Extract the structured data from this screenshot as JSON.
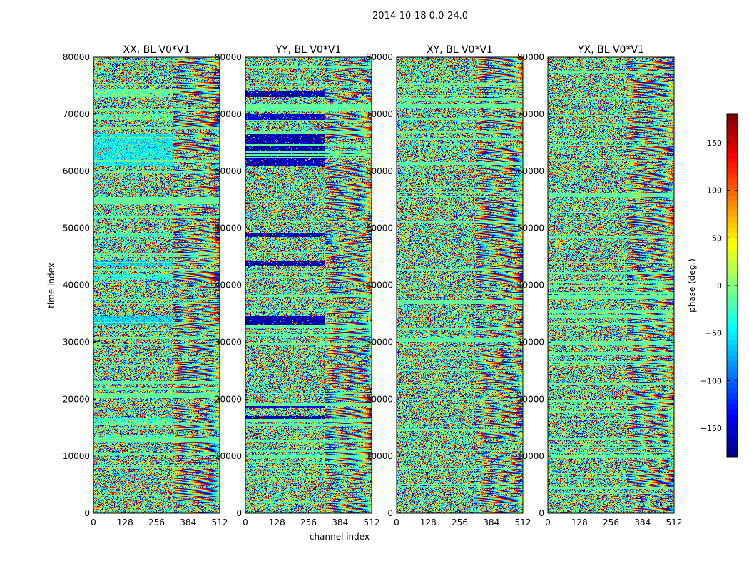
{
  "chart_data": {
    "type": "heatmap",
    "title": "2014-10-18 0.0-24.0",
    "xlabel": "channel index",
    "ylabel": "time index",
    "xlim": [
      0,
      512
    ],
    "ylim": [
      0,
      80000
    ],
    "x_ticks": [
      0,
      128,
      256,
      384,
      512
    ],
    "y_ticks": [
      0,
      10000,
      20000,
      30000,
      40000,
      50000,
      60000,
      70000,
      80000
    ],
    "colorbar": {
      "label": "phase (deg.)",
      "range": [
        -180,
        180
      ],
      "ticks": [
        -150,
        -100,
        -50,
        0,
        50,
        100,
        150
      ],
      "tick_labels": [
        "−150",
        "−100",
        "−50",
        "0",
        "50",
        "100",
        "150"
      ],
      "colormap": "jet"
    },
    "panels": [
      {
        "title": "XX, BL V0*V1",
        "bands": [
          [
            73000,
            74000,
            -10
          ],
          [
            69000,
            70000,
            -10
          ],
          [
            61000,
            66500,
            -45
          ],
          [
            48500,
            49200,
            -20
          ],
          [
            43300,
            44300,
            -60
          ],
          [
            41000,
            42000,
            -30
          ],
          [
            33000,
            34500,
            -60
          ],
          [
            15500,
            16800,
            -20
          ],
          [
            13000,
            13700,
            -15
          ]
        ]
      },
      {
        "title": "YY, BL V0*V1",
        "bands": [
          [
            73000,
            74000,
            -165
          ],
          [
            69000,
            70000,
            -150
          ],
          [
            61000,
            66500,
            -165
          ],
          [
            48500,
            49200,
            -165
          ],
          [
            43300,
            44300,
            -165
          ],
          [
            33000,
            34500,
            -165
          ],
          [
            18500,
            19000,
            -150
          ],
          [
            16000,
            17000,
            -165
          ]
        ]
      },
      {
        "title": "XY, BL V0*V1",
        "bands": []
      },
      {
        "title": "YX, BL V0*V1",
        "bands": []
      }
    ]
  }
}
